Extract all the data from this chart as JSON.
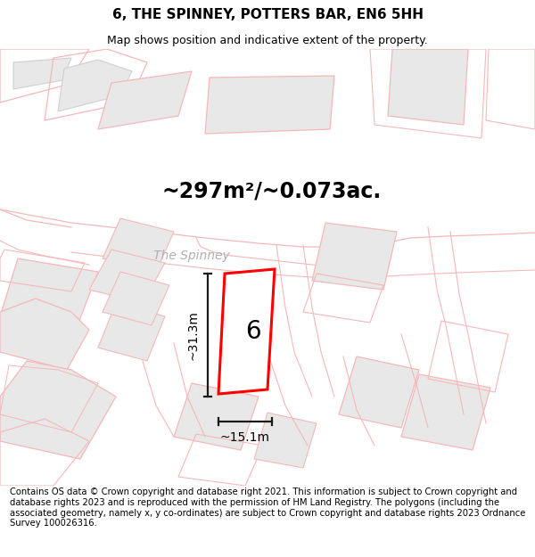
{
  "title": "6, THE SPINNEY, POTTERS BAR, EN6 5HH",
  "subtitle": "Map shows position and indicative extent of the property.",
  "area_label": "~297m²/~0.073ac.",
  "street_label": "The Spinney",
  "plot_number": "6",
  "dim_vertical": "~31.3m",
  "dim_horizontal": "~15.1m",
  "footer": "Contains OS data © Crown copyright and database right 2021. This information is subject to Crown copyright and database rights 2023 and is reproduced with the permission of HM Land Registry. The polygons (including the associated geometry, namely x, y co-ordinates) are subject to Crown copyright and database rights 2023 Ordnance Survey 100026316.",
  "bg_color": "#ffffff",
  "map_bg": "#ffffff",
  "building_fill": "#e8e8e8",
  "building_edge_outer": "#f5b8b8",
  "building_edge_inner": "#d0d0d0",
  "plot_edge_color": "#ff0000",
  "dim_line_color": "#1a1a1a",
  "title_fontsize": 11,
  "subtitle_fontsize": 9,
  "area_fontsize": 17,
  "street_fontsize": 10,
  "plot_num_fontsize": 20,
  "dim_fontsize": 10,
  "footer_fontsize": 7.2
}
